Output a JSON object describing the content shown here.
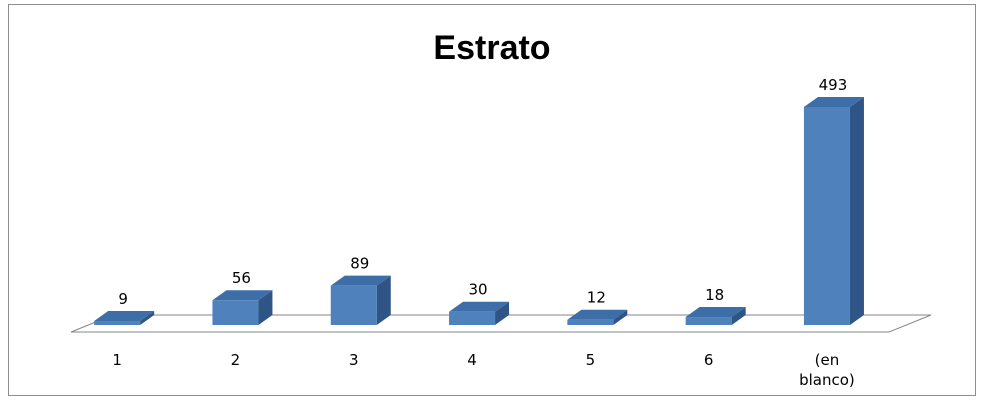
{
  "chart_data": {
    "type": "bar",
    "title": "Estrato",
    "categories": [
      "1",
      "2",
      "3",
      "4",
      "5",
      "6",
      "(en blanco)"
    ],
    "category_lines": [
      [
        "1"
      ],
      [
        "2"
      ],
      [
        "3"
      ],
      [
        "4"
      ],
      [
        "5"
      ],
      [
        "6"
      ],
      [
        "(en",
        "blanco)"
      ]
    ],
    "values": [
      9,
      56,
      89,
      30,
      12,
      18,
      493
    ],
    "xlabel": "",
    "ylabel": "",
    "ylim": [
      0,
      520
    ],
    "grid": false,
    "legend": "none",
    "style": "3d-column",
    "colors": {
      "front": "#4f81bd",
      "side": "#2f5486",
      "top": "#3e6ea8",
      "floor": "#ffffff",
      "floor_stroke": "#868686"
    }
  }
}
